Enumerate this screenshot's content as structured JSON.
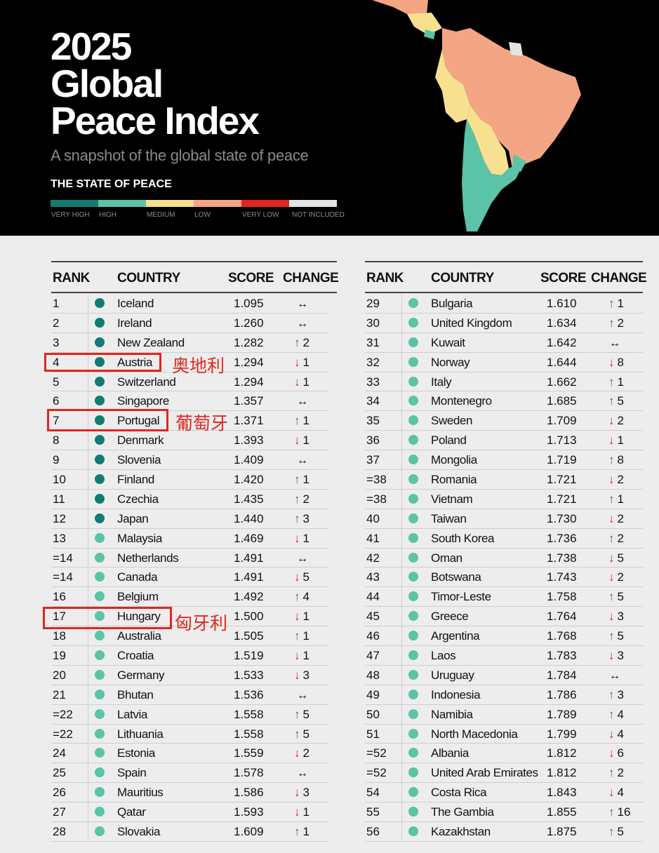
{
  "header": {
    "title_lines": [
      "2025",
      "Global",
      "Peace Index"
    ],
    "subtitle": "A snapshot of the global state of peace",
    "state_title": "THE STATE OF PEACE",
    "legend": [
      {
        "label": "VERY HIGH",
        "color": "#127b72"
      },
      {
        "label": "HIGH",
        "color": "#5bc3a8"
      },
      {
        "label": "MEDIUM",
        "color": "#f7e08f"
      },
      {
        "label": "LOW",
        "color": "#f4a583"
      },
      {
        "label": "VERY LOW",
        "color": "#e0261e"
      },
      {
        "label": "NOT INCLUDED",
        "color": "#e3e3e3"
      }
    ]
  },
  "table": {
    "headers": {
      "rank": "RANK",
      "country": "COUNTRY",
      "score": "SCORE",
      "change": "CHANGE"
    },
    "left": [
      {
        "rank": "1",
        "country": "Iceland",
        "score": "1.095",
        "dir": "flat",
        "num": "",
        "level": "very_high"
      },
      {
        "rank": "2",
        "country": "Ireland",
        "score": "1.260",
        "dir": "flat",
        "num": "",
        "level": "very_high"
      },
      {
        "rank": "3",
        "country": "New Zealand",
        "score": "1.282",
        "dir": "up",
        "num": "2",
        "level": "very_high"
      },
      {
        "rank": "4",
        "country": "Austria",
        "score": "1.294",
        "dir": "down",
        "num": "1",
        "level": "very_high"
      },
      {
        "rank": "5",
        "country": "Switzerland",
        "score": "1.294",
        "dir": "down",
        "num": "1",
        "level": "very_high"
      },
      {
        "rank": "6",
        "country": "Singapore",
        "score": "1.357",
        "dir": "flat",
        "num": "",
        "level": "very_high"
      },
      {
        "rank": "7",
        "country": "Portugal",
        "score": "1.371",
        "dir": "up",
        "num": "1",
        "level": "very_high"
      },
      {
        "rank": "8",
        "country": "Denmark",
        "score": "1.393",
        "dir": "down",
        "num": "1",
        "level": "very_high"
      },
      {
        "rank": "9",
        "country": "Slovenia",
        "score": "1.409",
        "dir": "flat",
        "num": "",
        "level": "very_high"
      },
      {
        "rank": "10",
        "country": "Finland",
        "score": "1.420",
        "dir": "up",
        "num": "1",
        "level": "very_high"
      },
      {
        "rank": "11",
        "country": "Czechia",
        "score": "1.435",
        "dir": "up",
        "num": "2",
        "level": "very_high"
      },
      {
        "rank": "12",
        "country": "Japan",
        "score": "1.440",
        "dir": "up",
        "num": "3",
        "level": "very_high"
      },
      {
        "rank": "13",
        "country": "Malaysia",
        "score": "1.469",
        "dir": "down",
        "num": "1",
        "level": "high"
      },
      {
        "rank": "=14",
        "country": "Netherlands",
        "score": "1.491",
        "dir": "flat",
        "num": "",
        "level": "high"
      },
      {
        "rank": "=14",
        "country": "Canada",
        "score": "1.491",
        "dir": "down",
        "num": "5",
        "level": "high"
      },
      {
        "rank": "16",
        "country": "Belgium",
        "score": "1.492",
        "dir": "up",
        "num": "4",
        "level": "high"
      },
      {
        "rank": "17",
        "country": "Hungary",
        "score": "1.500",
        "dir": "down",
        "num": "1",
        "level": "high"
      },
      {
        "rank": "18",
        "country": "Australia",
        "score": "1.505",
        "dir": "up",
        "num": "1",
        "level": "high"
      },
      {
        "rank": "19",
        "country": "Croatia",
        "score": "1.519",
        "dir": "down",
        "num": "1",
        "level": "high"
      },
      {
        "rank": "20",
        "country": "Germany",
        "score": "1.533",
        "dir": "down",
        "num": "3",
        "level": "high"
      },
      {
        "rank": "21",
        "country": "Bhutan",
        "score": "1.536",
        "dir": "flat",
        "num": "",
        "level": "high"
      },
      {
        "rank": "=22",
        "country": "Latvia",
        "score": "1.558",
        "dir": "up",
        "num": "5",
        "level": "high"
      },
      {
        "rank": "=22",
        "country": "Lithuania",
        "score": "1.558",
        "dir": "up",
        "num": "5",
        "level": "high"
      },
      {
        "rank": "24",
        "country": "Estonia",
        "score": "1.559",
        "dir": "down",
        "num": "2",
        "level": "high"
      },
      {
        "rank": "25",
        "country": "Spain",
        "score": "1.578",
        "dir": "flat",
        "num": "",
        "level": "high"
      },
      {
        "rank": "26",
        "country": "Mauritius",
        "score": "1.586",
        "dir": "down",
        "num": "3",
        "level": "high"
      },
      {
        "rank": "27",
        "country": "Qatar",
        "score": "1.593",
        "dir": "down",
        "num": "1",
        "level": "high"
      },
      {
        "rank": "28",
        "country": "Slovakia",
        "score": "1.609",
        "dir": "up",
        "num": "1",
        "level": "high"
      }
    ],
    "right": [
      {
        "rank": "29",
        "country": "Bulgaria",
        "score": "1.610",
        "dir": "up",
        "num": "1",
        "level": "high"
      },
      {
        "rank": "30",
        "country": "United Kingdom",
        "score": "1.634",
        "dir": "up",
        "num": "2",
        "level": "high"
      },
      {
        "rank": "31",
        "country": "Kuwait",
        "score": "1.642",
        "dir": "flat",
        "num": "",
        "level": "high"
      },
      {
        "rank": "32",
        "country": "Norway",
        "score": "1.644",
        "dir": "down",
        "num": "8",
        "level": "high"
      },
      {
        "rank": "33",
        "country": "Italy",
        "score": "1.662",
        "dir": "up",
        "num": "1",
        "level": "high"
      },
      {
        "rank": "34",
        "country": "Montenegro",
        "score": "1.685",
        "dir": "up",
        "num": "5",
        "level": "high"
      },
      {
        "rank": "35",
        "country": "Sweden",
        "score": "1.709",
        "dir": "down",
        "num": "2",
        "level": "high"
      },
      {
        "rank": "36",
        "country": "Poland",
        "score": "1.713",
        "dir": "down",
        "num": "1",
        "level": "high"
      },
      {
        "rank": "37",
        "country": "Mongolia",
        "score": "1.719",
        "dir": "up",
        "num": "8",
        "level": "high"
      },
      {
        "rank": "=38",
        "country": "Romania",
        "score": "1.721",
        "dir": "down",
        "num": "2",
        "level": "high"
      },
      {
        "rank": "=38",
        "country": "Vietnam",
        "score": "1.721",
        "dir": "up",
        "num": "1",
        "level": "high"
      },
      {
        "rank": "40",
        "country": "Taiwan",
        "score": "1.730",
        "dir": "down",
        "num": "2",
        "level": "high"
      },
      {
        "rank": "41",
        "country": "South Korea",
        "score": "1.736",
        "dir": "up",
        "num": "2",
        "level": "high"
      },
      {
        "rank": "42",
        "country": "Oman",
        "score": "1.738",
        "dir": "down",
        "num": "5",
        "level": "high"
      },
      {
        "rank": "43",
        "country": "Botswana",
        "score": "1.743",
        "dir": "down",
        "num": "2",
        "level": "high"
      },
      {
        "rank": "44",
        "country": "Timor-Leste",
        "score": "1.758",
        "dir": "up",
        "num": "5",
        "level": "high"
      },
      {
        "rank": "45",
        "country": "Greece",
        "score": "1.764",
        "dir": "down",
        "num": "3",
        "level": "high"
      },
      {
        "rank": "46",
        "country": "Argentina",
        "score": "1.768",
        "dir": "up",
        "num": "5",
        "level": "high"
      },
      {
        "rank": "47",
        "country": "Laos",
        "score": "1.783",
        "dir": "down",
        "num": "3",
        "level": "high"
      },
      {
        "rank": "48",
        "country": "Uruguay",
        "score": "1.784",
        "dir": "flat",
        "num": "",
        "level": "high"
      },
      {
        "rank": "49",
        "country": "Indonesia",
        "score": "1.786",
        "dir": "up",
        "num": "3",
        "level": "high"
      },
      {
        "rank": "50",
        "country": "Namibia",
        "score": "1.789",
        "dir": "up",
        "num": "4",
        "level": "high"
      },
      {
        "rank": "51",
        "country": "North Macedonia",
        "score": "1.799",
        "dir": "down",
        "num": "4",
        "level": "high"
      },
      {
        "rank": "=52",
        "country": "Albania",
        "score": "1.812",
        "dir": "down",
        "num": "6",
        "level": "high"
      },
      {
        "rank": "=52",
        "country": "United Arab Emirates",
        "score": "1.812",
        "dir": "up",
        "num": "2",
        "level": "high"
      },
      {
        "rank": "54",
        "country": "Costa Rica",
        "score": "1.843",
        "dir": "down",
        "num": "4",
        "level": "high"
      },
      {
        "rank": "55",
        "country": "The Gambia",
        "score": "1.855",
        "dir": "up",
        "num": "16",
        "level": "high"
      },
      {
        "rank": "56",
        "country": "Kazakhstan",
        "score": "1.875",
        "dir": "up",
        "num": "5",
        "level": "high"
      }
    ]
  },
  "level_colors": {
    "very_high": "#127b72",
    "high": "#5bc3a8"
  },
  "arrows": {
    "up": "↑",
    "down": "↓",
    "flat": "↔"
  },
  "annotations": [
    {
      "text": "奥地利",
      "target": "Austria"
    },
    {
      "text": "葡萄牙",
      "target": "Portugal"
    },
    {
      "text": "匈牙利",
      "target": "Hungary"
    }
  ]
}
